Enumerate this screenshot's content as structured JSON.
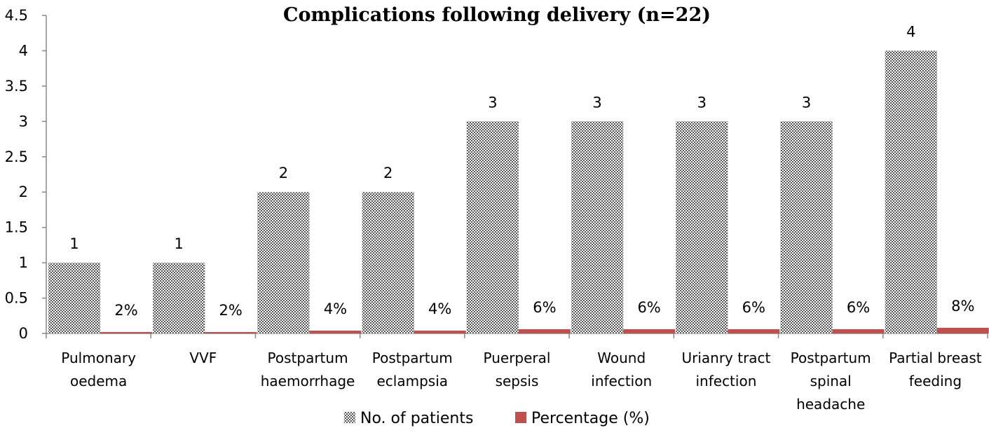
{
  "chart_data": {
    "type": "bar",
    "title": "Complications following delivery (n=22)",
    "xlabel": "",
    "ylabel": "",
    "ylim": [
      0,
      4.5
    ],
    "yticks": [
      "0",
      "0.5",
      "1",
      "1.5",
      "2",
      "2.5",
      "3",
      "3.5",
      "4",
      "4.5"
    ],
    "categories": [
      [
        "Pulmonary",
        "oedema"
      ],
      [
        "VVF"
      ],
      [
        "Postpartum",
        "haemorrhage"
      ],
      [
        "Postpartum",
        "eclampsia"
      ],
      [
        "Puerperal",
        "sepsis"
      ],
      [
        "Wound",
        "infection"
      ],
      [
        "Urianry tract",
        "infection"
      ],
      [
        "Postpartum",
        "spinal",
        "headache"
      ],
      [
        "Partial breast",
        "feeding"
      ]
    ],
    "series": [
      {
        "name": "No. of patients",
        "values": [
          1,
          1,
          2,
          2,
          3,
          3,
          3,
          3,
          4
        ],
        "labels": [
          "1",
          "1",
          "2",
          "2",
          "3",
          "3",
          "3",
          "3",
          "4"
        ],
        "color": "#d0d0d0",
        "pattern": "checker"
      },
      {
        "name": "Percentage (%)",
        "values": [
          0.02,
          0.02,
          0.04,
          0.04,
          0.06,
          0.06,
          0.06,
          0.06,
          0.08
        ],
        "labels": [
          "2%",
          "2%",
          "4%",
          "4%",
          "6%",
          "6%",
          "6%",
          "6%",
          "8%"
        ],
        "color": "#c0504d"
      }
    ],
    "grid": false,
    "legend_position": "bottom"
  }
}
